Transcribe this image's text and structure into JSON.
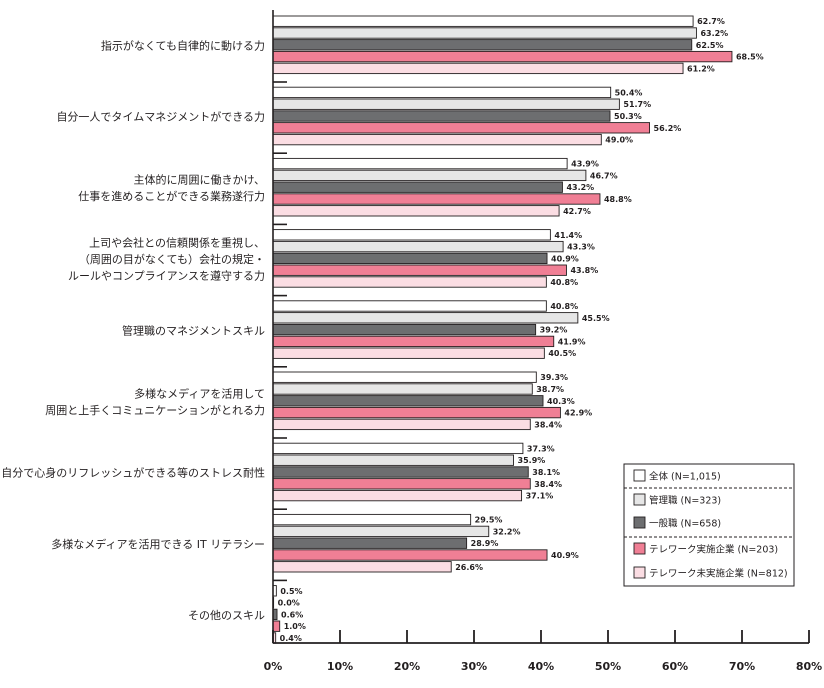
{
  "chart_data": {
    "type": "bar",
    "orientation": "horizontal",
    "title": "",
    "xlabel": "",
    "ylabel": "",
    "xlim": [
      0,
      80
    ],
    "x_ticks": [
      "0%",
      "10%",
      "20%",
      "30%",
      "40%",
      "50%",
      "60%",
      "70%",
      "80%"
    ],
    "grid": false,
    "legend_position": "bottom-right",
    "categories": [
      [
        "指示がなくても自律的に動ける力"
      ],
      [
        "自分一人でタイムマネジメントができる力"
      ],
      [
        "主体的に周囲に働きかけ、",
        "仕事を進めることができる業務遂行力"
      ],
      [
        "上司や会社との信頼関係を重視し、",
        "（周囲の目がなくても）会社の規定・",
        "ルールやコンプライアンスを遵守する力"
      ],
      [
        "管理職のマネジメントスキル"
      ],
      [
        "多様なメディアを活用して",
        "周囲と上手くコミュニケーションがとれる力"
      ],
      [
        "自分で心身のリフレッシュができる等のストレス耐性"
      ],
      [
        "多様なメディアを活用できる IT リテラシー"
      ],
      [
        "その他のスキル"
      ]
    ],
    "series": [
      {
        "name": "全体 (N=1,015)",
        "color": "#ffffff",
        "values": [
          62.7,
          50.4,
          43.9,
          41.4,
          40.8,
          39.3,
          37.3,
          29.5,
          0.5
        ],
        "labels": [
          "62.7%",
          "50.4%",
          "43.9%",
          "41.4%",
          "40.8%",
          "39.3%",
          "37.3%",
          "29.5%",
          "0.5%"
        ]
      },
      {
        "name": "管理職 (N=323)",
        "color": "#e6e6e6",
        "values": [
          63.2,
          51.7,
          46.7,
          43.3,
          45.5,
          38.7,
          35.9,
          32.2,
          0.0
        ],
        "labels": [
          "63.2%",
          "51.7%",
          "46.7%",
          "43.3%",
          "45.5%",
          "38.7%",
          "35.9%",
          "32.2%",
          "0.0%"
        ]
      },
      {
        "name": "一般職 (N=658)",
        "color": "#6d6e70",
        "values": [
          62.5,
          50.3,
          43.2,
          40.9,
          39.2,
          40.3,
          38.1,
          28.9,
          0.6
        ],
        "labels": [
          "62.5%",
          "50.3%",
          "43.2%",
          "40.9%",
          "39.2%",
          "40.3%",
          "38.1%",
          "28.9%",
          "0.6%"
        ]
      },
      {
        "name": "テレワーク実施企業 (N=203)",
        "color": "#f07f95",
        "values": [
          68.5,
          56.2,
          48.8,
          43.8,
          41.9,
          42.9,
          38.4,
          40.9,
          1.0
        ],
        "labels": [
          "68.5%",
          "56.2%",
          "48.8%",
          "43.8%",
          "41.9%",
          "42.9%",
          "38.4%",
          "40.9%",
          "1.0%"
        ]
      },
      {
        "name": "テレワーク未実施企業 (N=812)",
        "color": "#fbdde3",
        "values": [
          61.2,
          49.0,
          42.7,
          40.8,
          40.5,
          38.4,
          37.1,
          26.6,
          0.4
        ],
        "labels": [
          "61.2%",
          "49.0%",
          "42.7%",
          "40.8%",
          "40.5%",
          "38.4%",
          "37.1%",
          "26.6%",
          "0.4%"
        ]
      }
    ]
  }
}
